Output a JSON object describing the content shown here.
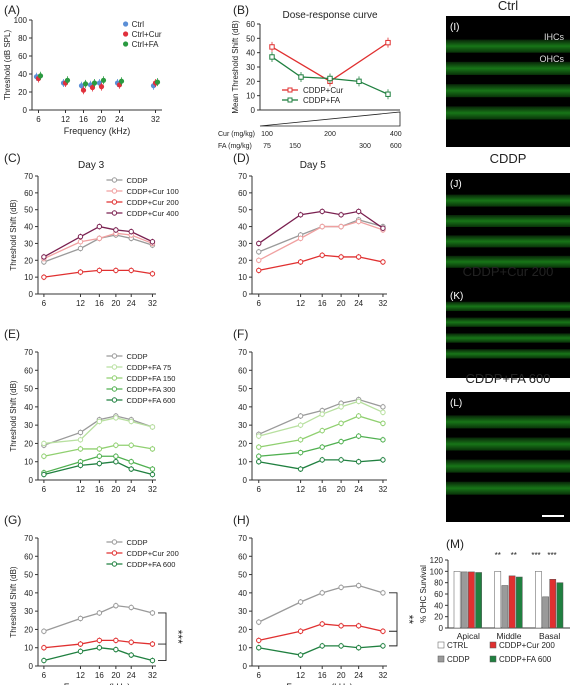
{
  "figure": {
    "panel_labels": [
      "(A)",
      "(B)",
      "(C)",
      "(D)",
      "(E)",
      "(F)",
      "(G)",
      "(H)",
      "(I)",
      "(J)",
      "(K)",
      "(L)",
      "(M)"
    ],
    "micrograph_titles": [
      "Ctrl",
      "CDDP",
      "CDDP+Cur 200",
      "CDDP+FA 600"
    ],
    "ihc_label": "IHCs",
    "ohc_label": "OHCs",
    "colors": {
      "ctrl": "#8a8a8a",
      "cddp": "#9a9a9a",
      "cur100": "#f0a0a0",
      "cur200": "#e03030",
      "cur400": "#7a2050",
      "fa75": "#b8e0a0",
      "fa150": "#90d070",
      "fa300": "#50b050",
      "fa600": "#208040",
      "A_ctrl": "#5b8fd6",
      "A_cur": "#e0303c",
      "A_fa": "#2a9a40"
    }
  },
  "chart_data": [
    {
      "panel": "A",
      "type": "scatter",
      "ylabel": "Threshold (dB SPL)",
      "xlabel": "Frequency (kHz)",
      "ylim": [
        0,
        100
      ],
      "yticks": [
        0,
        20,
        40,
        60,
        80,
        100
      ],
      "xticks": [
        6,
        12,
        16,
        20,
        24,
        32
      ],
      "legend": [
        "Ctrl",
        "Ctrl+Cur",
        "Ctrl+FA"
      ],
      "series": [
        {
          "name": "Ctrl",
          "x": [
            6,
            12,
            16,
            18,
            20,
            24,
            32
          ],
          "y": [
            37,
            30,
            27,
            28,
            30,
            30,
            27
          ]
        },
        {
          "name": "Ctrl+Cur",
          "x": [
            6,
            12,
            16,
            18,
            20,
            24,
            32
          ],
          "y": [
            35,
            30,
            22,
            25,
            26,
            28,
            30
          ]
        },
        {
          "name": "Ctrl+FA",
          "x": [
            6,
            12,
            16,
            18,
            20,
            24,
            32
          ],
          "y": [
            38,
            33,
            29,
            30,
            33,
            32,
            31
          ]
        }
      ]
    },
    {
      "panel": "B",
      "type": "line",
      "title": "Dose-response curve",
      "ylabel": "Mean Threshold Shift (dB)",
      "ylim": [
        0,
        60
      ],
      "yticks": [
        0,
        10,
        20,
        30,
        40,
        50,
        60
      ],
      "legend": [
        "CDDP+Cur",
        "CDDP+FA"
      ],
      "cur_label": "Cur (mg/kg)",
      "fa_label": "FA (mg/kg)",
      "cur_doses": [
        "100",
        "200",
        "400"
      ],
      "fa_doses": [
        "75",
        "150",
        "300",
        "600"
      ],
      "series": [
        {
          "name": "CDDP+Cur",
          "x": [
            1,
            2,
            3
          ],
          "y": [
            44,
            20,
            47
          ]
        },
        {
          "name": "CDDP+FA",
          "x": [
            1,
            1.5,
            2,
            2.5,
            3
          ],
          "y": [
            37,
            23,
            22,
            20,
            11
          ]
        }
      ]
    },
    {
      "panel": "C",
      "type": "line",
      "title": "Day 3",
      "ylabel": "Threshold Shift (dB)",
      "ylim": [
        0,
        70
      ],
      "yticks": [
        0,
        10,
        20,
        30,
        40,
        50,
        60,
        70
      ],
      "xticks": [
        6,
        12,
        16,
        20,
        24,
        32
      ],
      "legend": [
        "CDDP",
        "CDDP+Cur 100",
        "CDDP+Cur 200",
        "CDDP+Cur 400"
      ],
      "x": [
        6,
        12,
        16,
        20,
        24,
        32
      ],
      "series": [
        {
          "name": "CDDP",
          "key": "cddp",
          "values": [
            19,
            27,
            33,
            35,
            33,
            29
          ]
        },
        {
          "name": "CDDP+Cur 100",
          "key": "cur100",
          "values": [
            21,
            31,
            33,
            36,
            35,
            30
          ]
        },
        {
          "name": "CDDP+Cur 200",
          "key": "cur200",
          "values": [
            10,
            13,
            14,
            14,
            14,
            12
          ]
        },
        {
          "name": "CDDP+Cur 400",
          "key": "cur400",
          "values": [
            22,
            34,
            40,
            38,
            37,
            31
          ]
        }
      ]
    },
    {
      "panel": "D",
      "type": "line",
      "title": "Day 5",
      "ylabel": "",
      "ylim": [
        0,
        70
      ],
      "yticks": [
        0,
        10,
        20,
        30,
        40,
        50,
        60,
        70
      ],
      "xticks": [
        6,
        12,
        16,
        20,
        24,
        32
      ],
      "x": [
        6,
        12,
        16,
        20,
        24,
        32
      ],
      "series": [
        {
          "name": "CDDP",
          "key": "cddp",
          "values": [
            25,
            35,
            40,
            40,
            44,
            40
          ]
        },
        {
          "name": "CDDP+Cur 100",
          "key": "cur100",
          "values": [
            20,
            33,
            40,
            40,
            43,
            38
          ]
        },
        {
          "name": "CDDP+Cur 200",
          "key": "cur200",
          "values": [
            14,
            19,
            23,
            22,
            22,
            19
          ]
        },
        {
          "name": "CDDP+Cur 400",
          "key": "cur400",
          "values": [
            30,
            47,
            49,
            47,
            49,
            39
          ]
        }
      ]
    },
    {
      "panel": "E",
      "type": "line",
      "ylabel": "Threshold Shift (dB)",
      "ylim": [
        0,
        70
      ],
      "yticks": [
        0,
        10,
        20,
        30,
        40,
        50,
        60,
        70
      ],
      "xticks": [
        6,
        12,
        16,
        20,
        24,
        32
      ],
      "legend": [
        "CDDP",
        "CDDP+FA 75",
        "CDDP+FA 150",
        "CDDP+FA 300",
        "CDDP+FA 600"
      ],
      "x": [
        6,
        12,
        16,
        20,
        24,
        32
      ],
      "series": [
        {
          "name": "CDDP",
          "key": "cddp",
          "values": [
            19,
            26,
            33,
            35,
            33,
            29
          ]
        },
        {
          "name": "CDDP+FA 75",
          "key": "fa75",
          "values": [
            20,
            22,
            32,
            34,
            32,
            29
          ]
        },
        {
          "name": "CDDP+FA 150",
          "key": "fa150",
          "values": [
            13,
            17,
            17,
            19,
            19,
            17
          ]
        },
        {
          "name": "CDDP+FA 300",
          "key": "fa300",
          "values": [
            4,
            10,
            13,
            13,
            10,
            6
          ]
        },
        {
          "name": "CDDP+FA 600",
          "key": "fa600",
          "values": [
            3,
            8,
            9,
            10,
            6,
            3
          ]
        }
      ]
    },
    {
      "panel": "F",
      "type": "line",
      "ylabel": "",
      "ylim": [
        0,
        70
      ],
      "yticks": [
        0,
        10,
        20,
        30,
        40,
        50,
        60,
        70
      ],
      "xticks": [
        6,
        12,
        16,
        20,
        24,
        32
      ],
      "x": [
        6,
        12,
        16,
        20,
        24,
        32
      ],
      "series": [
        {
          "name": "CDDP",
          "key": "cddp",
          "values": [
            25,
            35,
            38,
            42,
            44,
            40
          ]
        },
        {
          "name": "CDDP+FA 75",
          "key": "fa75",
          "values": [
            24,
            30,
            36,
            40,
            43,
            37
          ]
        },
        {
          "name": "CDDP+FA 150",
          "key": "fa150",
          "values": [
            18,
            22,
            27,
            31,
            35,
            31
          ]
        },
        {
          "name": "CDDP+FA 300",
          "key": "fa300",
          "values": [
            13,
            15,
            18,
            21,
            24,
            22
          ]
        },
        {
          "name": "CDDP+FA 600",
          "key": "fa600",
          "values": [
            10,
            6,
            11,
            11,
            10,
            11
          ]
        }
      ]
    },
    {
      "panel": "G",
      "type": "line",
      "ylabel": "Threshold Shift (dB)",
      "xlabel": "Frequency (kHz)",
      "ylim": [
        0,
        70
      ],
      "yticks": [
        0,
        10,
        20,
        30,
        40,
        50,
        60,
        70
      ],
      "xticks": [
        6,
        12,
        16,
        20,
        24,
        32
      ],
      "legend": [
        "CDDP",
        "CDDP+Cur 200",
        "CDDP+FA 600"
      ],
      "significance": "***",
      "x": [
        6,
        12,
        16,
        20,
        24,
        32
      ],
      "series": [
        {
          "name": "CDDP",
          "key": "cddp",
          "values": [
            19,
            26,
            29,
            33,
            32,
            29
          ]
        },
        {
          "name": "CDDP+Cur 200",
          "key": "cur200",
          "values": [
            10,
            12,
            14,
            14,
            13,
            12
          ]
        },
        {
          "name": "CDDP+FA 600",
          "key": "fa600",
          "values": [
            3,
            8,
            10,
            9,
            6,
            3
          ]
        }
      ]
    },
    {
      "panel": "H",
      "type": "line",
      "ylabel": "",
      "xlabel": "Frequency (kHz)",
      "ylim": [
        0,
        70
      ],
      "yticks": [
        0,
        10,
        20,
        30,
        40,
        50,
        60,
        70
      ],
      "xticks": [
        6,
        12,
        16,
        20,
        24,
        32
      ],
      "significance": "**",
      "x": [
        6,
        12,
        16,
        20,
        24,
        32
      ],
      "series": [
        {
          "name": "CDDP",
          "key": "cddp",
          "values": [
            24,
            35,
            40,
            43,
            44,
            40
          ]
        },
        {
          "name": "CDDP+Cur 200",
          "key": "cur200",
          "values": [
            14,
            19,
            23,
            22,
            22,
            19
          ]
        },
        {
          "name": "CDDP+FA 600",
          "key": "fa600",
          "values": [
            10,
            6,
            11,
            11,
            10,
            11
          ]
        }
      ]
    },
    {
      "panel": "M",
      "type": "bar",
      "ylabel": "% OHC Survival",
      "ylim": [
        0,
        120
      ],
      "yticks": [
        0,
        20,
        40,
        60,
        80,
        100,
        120
      ],
      "categories": [
        "Apical",
        "Middle",
        "Basal"
      ],
      "legend": [
        "CTRL",
        "CDDP",
        "CDDP+Cur 200",
        "CDDP+FA 600"
      ],
      "significance": [
        "**",
        "**",
        "***",
        "***"
      ],
      "series": [
        {
          "name": "CTRL",
          "key": "ctrl_bar",
          "values": [
            100,
            100,
            100
          ]
        },
        {
          "name": "CDDP",
          "key": "cddp_bar",
          "values": [
            99,
            75,
            55
          ]
        },
        {
          "name": "CDDP+Cur 200",
          "key": "cur200_bar",
          "values": [
            99,
            92,
            86
          ]
        },
        {
          "name": "CDDP+FA 600",
          "key": "fa600_bar",
          "values": [
            98,
            90,
            80
          ]
        }
      ]
    }
  ]
}
